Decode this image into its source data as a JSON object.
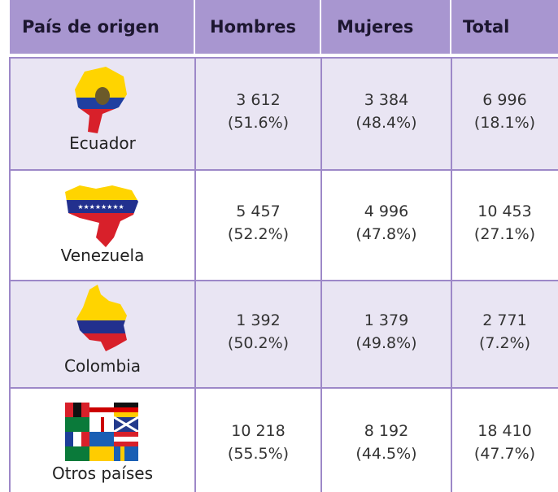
{
  "table": {
    "header": [
      "País de origen",
      "Hombres",
      "Mujeres",
      "Total"
    ],
    "rows": [
      {
        "country": "Ecuador",
        "cells": [
          [
            "3 612",
            "(51.6%)"
          ],
          [
            "3 384",
            "(48.4%)"
          ],
          [
            "6 996",
            "(18.1%)"
          ]
        ]
      },
      {
        "country": "Venezuela",
        "cells": [
          [
            "5 457",
            "(52.2%)"
          ],
          [
            "4 996",
            "(47.8%)"
          ],
          [
            "10 453",
            "(27.1%)"
          ]
        ]
      },
      {
        "country": "Colombia",
        "cells": [
          [
            "1 392",
            "(50.2%)"
          ],
          [
            "1 379",
            "(49.8%)"
          ],
          [
            "2 771",
            "(7.2%)"
          ]
        ]
      },
      {
        "country": "Otros países",
        "cells": [
          [
            "10 218",
            "(55.5%)"
          ],
          [
            "8 192",
            "(44.5%)"
          ],
          [
            "18 410",
            "(47.7%)"
          ]
        ]
      }
    ]
  }
}
